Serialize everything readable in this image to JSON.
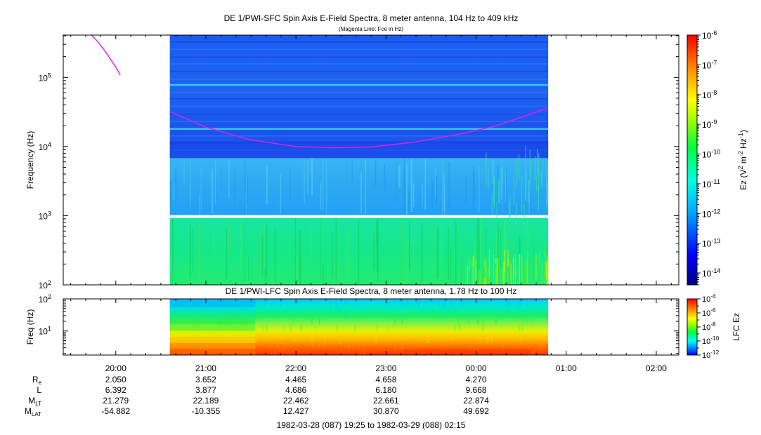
{
  "chart_data": [
    {
      "type": "heatmap",
      "title": "DE 1/PWI-SFC  Spin Axis E-Field Spectra, 8 meter antenna, 104 Hz to 409 kHz",
      "subtitle": "(Magenta Line: Fce in Hz)",
      "ylabel": "Frequency (Hz)",
      "yscale": "log",
      "ylim": [
        100,
        409000
      ],
      "yticks": [
        {
          "value": 100,
          "mant": "10",
          "exp": "2"
        },
        {
          "value": 1000,
          "mant": "10",
          "exp": "3"
        },
        {
          "value": 10000,
          "mant": "10",
          "exp": "4"
        },
        {
          "value": 100000,
          "mant": "10",
          "exp": "5"
        }
      ],
      "data_time_range_hours": [
        20.6,
        24.8
      ],
      "data_gap_hz": [
        930,
        1020
      ],
      "fce_line": {
        "color": "#e020e0",
        "segments": [
          {
            "t": [
              19.73,
              19.8,
              19.9,
              20.0,
              20.05
            ],
            "f": [
              409000,
              330000,
              220000,
              140000,
              108000
            ]
          },
          {
            "t": [
              20.6,
              21.0,
              21.5,
              22.0,
              22.4,
              22.8,
              23.3,
              23.8,
              24.2,
              24.8
            ],
            "f": [
              32000,
              19000,
              12500,
              10000,
              9600,
              9800,
              11500,
              15000,
              19500,
              36000
            ]
          }
        ]
      },
      "colorbar": {
        "label_parts": [
          "Ez (V",
          "2",
          " m",
          "-2",
          " Hz",
          "-1",
          ")"
        ],
        "scale": "log",
        "range": [
          -14.4,
          -6
        ],
        "ticks": [
          {
            "value": -6,
            "mant": "10",
            "exp": "-6"
          },
          {
            "value": -7,
            "mant": "10",
            "exp": "-7"
          },
          {
            "value": -8,
            "mant": "10",
            "exp": "-8"
          },
          {
            "value": -9,
            "mant": "10",
            "exp": "-9"
          },
          {
            "value": -10,
            "mant": "10",
            "exp": "-10"
          },
          {
            "value": -11,
            "mant": "10",
            "exp": "-11"
          },
          {
            "value": -12,
            "mant": "10",
            "exp": "-12"
          },
          {
            "value": -13,
            "mant": "10",
            "exp": "-13"
          },
          {
            "value": -14,
            "mant": "10",
            "exp": "-14"
          }
        ]
      }
    },
    {
      "type": "heatmap",
      "title": "DE 1/PWI-LFC  Spin Axis E-Field Spectra, 8 meter antenna, 1.78 Hz to 100 Hz",
      "ylabel": "Freq (Hz)",
      "yscale": "log",
      "ylim": [
        1.78,
        100
      ],
      "yticks": [
        {
          "value": 10,
          "mant": "10",
          "exp": "1"
        },
        {
          "value": 100,
          "mant": "10",
          "exp": "2"
        }
      ],
      "data_time_range_hours": [
        20.6,
        24.8
      ],
      "colorbar": {
        "label_parts": [
          "LFC Ez"
        ],
        "scale": "log",
        "range": [
          -12,
          -4
        ],
        "ticks": [
          {
            "value": -4,
            "mant": "10",
            "exp": "-4"
          },
          {
            "value": -6,
            "mant": "10",
            "exp": "-6"
          },
          {
            "value": -8,
            "mant": "10",
            "exp": "-8"
          },
          {
            "value": -10,
            "mant": "10",
            "exp": "-10"
          },
          {
            "value": -12,
            "mant": "10",
            "exp": "-12"
          }
        ]
      }
    }
  ],
  "time_axis": {
    "range_hours": [
      19.4167,
      26.25
    ],
    "ticks": [
      {
        "hour": 20,
        "label": "20:00"
      },
      {
        "hour": 21,
        "label": "21:00"
      },
      {
        "hour": 22,
        "label": "22:00"
      },
      {
        "hour": 23,
        "label": "23:00"
      },
      {
        "hour": 24,
        "label": "00:00"
      },
      {
        "hour": 25,
        "label": "01:00"
      },
      {
        "hour": 26,
        "label": "02:00"
      }
    ]
  },
  "ephemeris": {
    "rows": [
      {
        "label": "R",
        "sub": "e",
        "values": [
          "2.050",
          "3.652",
          "4.465",
          "4.658",
          "4.270"
        ]
      },
      {
        "label": "L",
        "sub": "",
        "values": [
          "6.392",
          "3.877",
          "4.686",
          "6.180",
          "9.668"
        ]
      },
      {
        "label": "M",
        "sub": "LT",
        "values": [
          "21.279",
          "22.189",
          "22.462",
          "22.661",
          "22.874"
        ]
      },
      {
        "label": "M",
        "sub": "LAT",
        "values": [
          "-54.882",
          "-10.355",
          "12.427",
          "30.870",
          "49.692"
        ]
      }
    ],
    "value_hours": [
      20,
      21,
      22,
      23,
      24
    ]
  },
  "footer": "1982-03-28 (087) 19:25 to 1982-03-29 (088) 02:15"
}
